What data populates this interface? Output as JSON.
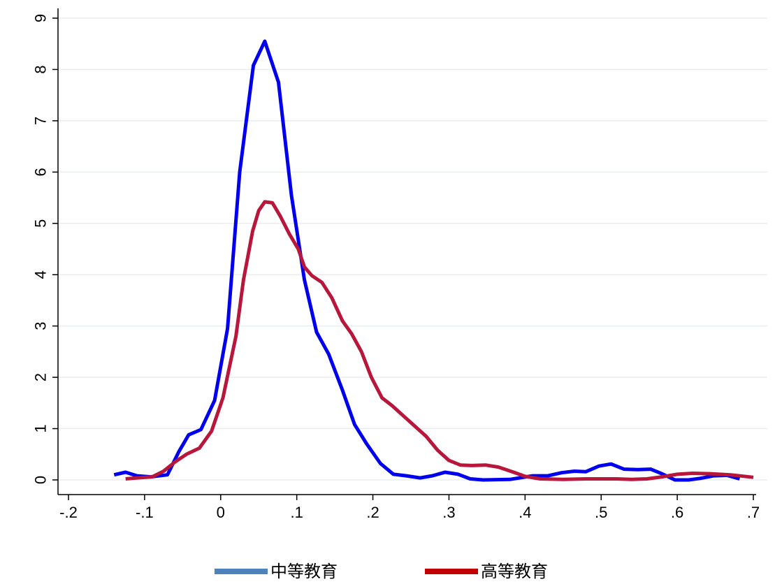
{
  "chart_data": {
    "type": "line",
    "title": "",
    "xlabel": "",
    "ylabel": "",
    "xlim": [
      -0.2,
      0.7
    ],
    "ylim": [
      0,
      9
    ],
    "grid": true,
    "legend_position": "bottom",
    "x_ticks": [
      "-.2",
      "-.1",
      "0",
      ".1",
      ".2",
      ".3",
      ".4",
      ".5",
      ".6",
      ".7"
    ],
    "y_ticks": [
      "0",
      "1",
      "2",
      "3",
      "4",
      "5",
      "6",
      "7",
      "8",
      "9"
    ],
    "series": [
      {
        "name": "中等教育",
        "color": "#0000ee",
        "legend_color": "#4f81bd",
        "points": [
          [
            -0.14,
            0.1
          ],
          [
            -0.125,
            0.15
          ],
          [
            -0.11,
            0.08
          ],
          [
            -0.092,
            0.06
          ],
          [
            -0.07,
            0.1
          ],
          [
            -0.055,
            0.55
          ],
          [
            -0.042,
            0.88
          ],
          [
            -0.026,
            0.98
          ],
          [
            -0.008,
            1.55
          ],
          [
            0.009,
            2.95
          ],
          [
            0.025,
            6.0
          ],
          [
            0.043,
            8.08
          ],
          [
            0.058,
            8.55
          ],
          [
            0.076,
            7.75
          ],
          [
            0.093,
            5.55
          ],
          [
            0.11,
            3.9
          ],
          [
            0.126,
            2.88
          ],
          [
            0.142,
            2.45
          ],
          [
            0.16,
            1.75
          ],
          [
            0.176,
            1.08
          ],
          [
            0.192,
            0.7
          ],
          [
            0.21,
            0.32
          ],
          [
            0.227,
            0.11
          ],
          [
            0.244,
            0.08
          ],
          [
            0.262,
            0.04
          ],
          [
            0.278,
            0.08
          ],
          [
            0.295,
            0.15
          ],
          [
            0.312,
            0.11
          ],
          [
            0.328,
            0.02
          ],
          [
            0.345,
            0.0
          ],
          [
            0.38,
            0.01
          ],
          [
            0.41,
            0.08
          ],
          [
            0.43,
            0.08
          ],
          [
            0.448,
            0.14
          ],
          [
            0.465,
            0.17
          ],
          [
            0.48,
            0.16
          ],
          [
            0.497,
            0.27
          ],
          [
            0.513,
            0.31
          ],
          [
            0.53,
            0.21
          ],
          [
            0.548,
            0.2
          ],
          [
            0.565,
            0.21
          ],
          [
            0.58,
            0.12
          ],
          [
            0.597,
            0.0
          ],
          [
            0.615,
            0.0
          ],
          [
            0.63,
            0.03
          ],
          [
            0.648,
            0.08
          ],
          [
            0.665,
            0.09
          ],
          [
            0.682,
            0.02
          ]
        ]
      },
      {
        "name": "高等教育",
        "color": "#b8163a",
        "legend_color": "#c00000",
        "points": [
          [
            -0.125,
            0.02
          ],
          [
            -0.11,
            0.04
          ],
          [
            -0.09,
            0.06
          ],
          [
            -0.075,
            0.17
          ],
          [
            -0.06,
            0.35
          ],
          [
            -0.045,
            0.5
          ],
          [
            -0.028,
            0.62
          ],
          [
            -0.012,
            0.95
          ],
          [
            0.003,
            1.6
          ],
          [
            0.02,
            2.8
          ],
          [
            0.03,
            3.9
          ],
          [
            0.042,
            4.85
          ],
          [
            0.05,
            5.25
          ],
          [
            0.058,
            5.42
          ],
          [
            0.068,
            5.4
          ],
          [
            0.078,
            5.15
          ],
          [
            0.09,
            4.8
          ],
          [
            0.102,
            4.5
          ],
          [
            0.11,
            4.15
          ],
          [
            0.12,
            3.98
          ],
          [
            0.133,
            3.85
          ],
          [
            0.146,
            3.55
          ],
          [
            0.16,
            3.1
          ],
          [
            0.172,
            2.85
          ],
          [
            0.185,
            2.5
          ],
          [
            0.198,
            2.0
          ],
          [
            0.212,
            1.6
          ],
          [
            0.225,
            1.45
          ],
          [
            0.24,
            1.25
          ],
          [
            0.255,
            1.05
          ],
          [
            0.27,
            0.85
          ],
          [
            0.285,
            0.58
          ],
          [
            0.3,
            0.38
          ],
          [
            0.315,
            0.29
          ],
          [
            0.33,
            0.28
          ],
          [
            0.348,
            0.29
          ],
          [
            0.365,
            0.25
          ],
          [
            0.385,
            0.15
          ],
          [
            0.4,
            0.07
          ],
          [
            0.42,
            0.02
          ],
          [
            0.45,
            0.01
          ],
          [
            0.48,
            0.02
          ],
          [
            0.52,
            0.02
          ],
          [
            0.54,
            0.01
          ],
          [
            0.56,
            0.02
          ],
          [
            0.58,
            0.06
          ],
          [
            0.6,
            0.11
          ],
          [
            0.62,
            0.13
          ],
          [
            0.645,
            0.12
          ],
          [
            0.67,
            0.1
          ],
          [
            0.7,
            0.05
          ]
        ]
      }
    ]
  }
}
